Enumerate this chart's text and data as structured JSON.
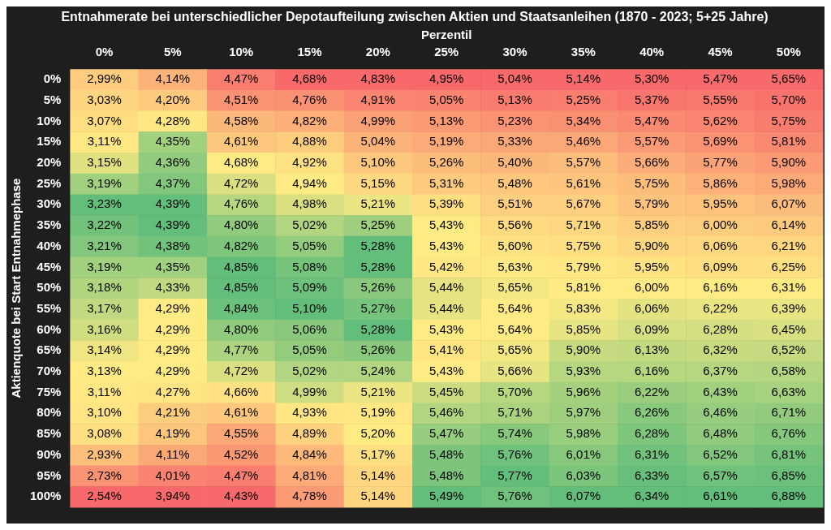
{
  "chart_data": {
    "type": "heatmap",
    "title": "Entnahmerate bei unterschiedlicher Depotaufteilung zwischen Aktien und Staatsanleihen (1870 - 2023; 5+25 Jahre)",
    "xlabel": "Perzentil",
    "ylabel": "Aktienquote bei Start Entnahmephase",
    "categories": [
      "0%",
      "5%",
      "10%",
      "15%",
      "20%",
      "25%",
      "30%",
      "35%",
      "40%",
      "45%",
      "50%"
    ],
    "y_categories": [
      "0%",
      "5%",
      "10%",
      "15%",
      "20%",
      "25%",
      "30%",
      "35%",
      "40%",
      "45%",
      "50%",
      "55%",
      "60%",
      "65%",
      "70%",
      "75%",
      "80%",
      "85%",
      "90%",
      "95%",
      "100%"
    ],
    "cells": [
      [
        2.99,
        4.14,
        4.47,
        4.68,
        4.83,
        4.95,
        5.04,
        5.14,
        5.3,
        5.47,
        5.65
      ],
      [
        3.03,
        4.2,
        4.51,
        4.76,
        4.91,
        5.05,
        5.13,
        5.25,
        5.37,
        5.55,
        5.7
      ],
      [
        3.07,
        4.28,
        4.58,
        4.82,
        4.99,
        5.13,
        5.23,
        5.34,
        5.47,
        5.62,
        5.75
      ],
      [
        3.11,
        4.35,
        4.61,
        4.88,
        5.04,
        5.19,
        5.33,
        5.46,
        5.57,
        5.69,
        5.81
      ],
      [
        3.15,
        4.36,
        4.68,
        4.92,
        5.1,
        5.26,
        5.4,
        5.57,
        5.66,
        5.77,
        5.9
      ],
      [
        3.19,
        4.37,
        4.72,
        4.94,
        5.15,
        5.31,
        5.48,
        5.61,
        5.75,
        5.86,
        5.98
      ],
      [
        3.23,
        4.39,
        4.76,
        4.98,
        5.21,
        5.39,
        5.51,
        5.67,
        5.79,
        5.95,
        6.07
      ],
      [
        3.22,
        4.39,
        4.8,
        5.02,
        5.25,
        5.43,
        5.56,
        5.71,
        5.85,
        6.0,
        6.14
      ],
      [
        3.21,
        4.38,
        4.82,
        5.05,
        5.28,
        5.43,
        5.6,
        5.75,
        5.9,
        6.06,
        6.21
      ],
      [
        3.19,
        4.35,
        4.85,
        5.08,
        5.28,
        5.42,
        5.63,
        5.79,
        5.95,
        6.09,
        6.25
      ],
      [
        3.18,
        4.33,
        4.85,
        5.09,
        5.26,
        5.44,
        5.65,
        5.81,
        6.0,
        6.16,
        6.31
      ],
      [
        3.17,
        4.29,
        4.84,
        5.1,
        5.27,
        5.44,
        5.64,
        5.83,
        6.06,
        6.22,
        6.39
      ],
      [
        3.16,
        4.29,
        4.8,
        5.06,
        5.28,
        5.43,
        5.64,
        5.85,
        6.09,
        6.28,
        6.45
      ],
      [
        3.14,
        4.29,
        4.77,
        5.05,
        5.26,
        5.41,
        5.65,
        5.9,
        6.13,
        6.32,
        6.52
      ],
      [
        3.13,
        4.29,
        4.72,
        5.02,
        5.24,
        5.43,
        5.66,
        5.93,
        6.16,
        6.37,
        6.58
      ],
      [
        3.11,
        4.27,
        4.66,
        4.99,
        5.21,
        5.45,
        5.7,
        5.96,
        6.22,
        6.43,
        6.63
      ],
      [
        3.1,
        4.21,
        4.61,
        4.93,
        5.19,
        5.46,
        5.71,
        5.97,
        6.26,
        6.46,
        6.71
      ],
      [
        3.08,
        4.19,
        4.55,
        4.89,
        5.2,
        5.47,
        5.74,
        5.98,
        6.28,
        6.48,
        6.76
      ],
      [
        2.93,
        4.11,
        4.52,
        4.84,
        5.17,
        5.48,
        5.76,
        6.01,
        6.31,
        6.52,
        6.81
      ],
      [
        2.73,
        4.01,
        4.47,
        4.81,
        5.14,
        5.48,
        5.77,
        6.03,
        6.33,
        6.57,
        6.85
      ],
      [
        2.54,
        3.94,
        4.43,
        4.78,
        5.14,
        5.49,
        5.76,
        6.07,
        6.34,
        6.61,
        6.88
      ]
    ],
    "cell_labels": [
      [
        "2,99%",
        "4,14%",
        "4,47%",
        "4,68%",
        "4,83%",
        "4,95%",
        "5,04%",
        "5,14%",
        "5,30%",
        "5,47%",
        "5,65%"
      ],
      [
        "3,03%",
        "4,20%",
        "4,51%",
        "4,76%",
        "4,91%",
        "5,05%",
        "5,13%",
        "5,25%",
        "5,37%",
        "5,55%",
        "5,70%"
      ],
      [
        "3,07%",
        "4,28%",
        "4,58%",
        "4,82%",
        "4,99%",
        "5,13%",
        "5,23%",
        "5,34%",
        "5,47%",
        "5,62%",
        "5,75%"
      ],
      [
        "3,11%",
        "4,35%",
        "4,61%",
        "4,88%",
        "5,04%",
        "5,19%",
        "5,33%",
        "5,46%",
        "5,57%",
        "5,69%",
        "5,81%"
      ],
      [
        "3,15%",
        "4,36%",
        "4,68%",
        "4,92%",
        "5,10%",
        "5,26%",
        "5,40%",
        "5,57%",
        "5,66%",
        "5,77%",
        "5,90%"
      ],
      [
        "3,19%",
        "4,37%",
        "4,72%",
        "4,94%",
        "5,15%",
        "5,31%",
        "5,48%",
        "5,61%",
        "5,75%",
        "5,86%",
        "5,98%"
      ],
      [
        "3,23%",
        "4,39%",
        "4,76%",
        "4,98%",
        "5,21%",
        "5,39%",
        "5,51%",
        "5,67%",
        "5,79%",
        "5,95%",
        "6,07%"
      ],
      [
        "3,22%",
        "4,39%",
        "4,80%",
        "5,02%",
        "5,25%",
        "5,43%",
        "5,56%",
        "5,71%",
        "5,85%",
        "6,00%",
        "6,14%"
      ],
      [
        "3,21%",
        "4,38%",
        "4,82%",
        "5,05%",
        "5,28%",
        "5,43%",
        "5,60%",
        "5,75%",
        "5,90%",
        "6,06%",
        "6,21%"
      ],
      [
        "3,19%",
        "4,35%",
        "4,85%",
        "5,08%",
        "5,28%",
        "5,42%",
        "5,63%",
        "5,79%",
        "5,95%",
        "6,09%",
        "6,25%"
      ],
      [
        "3,18%",
        "4,33%",
        "4,85%",
        "5,09%",
        "5,26%",
        "5,44%",
        "5,65%",
        "5,81%",
        "6,00%",
        "6,16%",
        "6,31%"
      ],
      [
        "3,17%",
        "4,29%",
        "4,84%",
        "5,10%",
        "5,27%",
        "5,44%",
        "5,64%",
        "5,83%",
        "6,06%",
        "6,22%",
        "6,39%"
      ],
      [
        "3,16%",
        "4,29%",
        "4,80%",
        "5,06%",
        "5,28%",
        "5,43%",
        "5,64%",
        "5,85%",
        "6,09%",
        "6,28%",
        "6,45%"
      ],
      [
        "3,14%",
        "4,29%",
        "4,77%",
        "5,05%",
        "5,26%",
        "5,41%",
        "5,65%",
        "5,90%",
        "6,13%",
        "6,32%",
        "6,52%"
      ],
      [
        "3,13%",
        "4,29%",
        "4,72%",
        "5,02%",
        "5,24%",
        "5,43%",
        "5,66%",
        "5,93%",
        "6,16%",
        "6,37%",
        "6,58%"
      ],
      [
        "3,11%",
        "4,27%",
        "4,66%",
        "4,99%",
        "5,21%",
        "5,45%",
        "5,70%",
        "5,96%",
        "6,22%",
        "6,43%",
        "6,63%"
      ],
      [
        "3,10%",
        "4,21%",
        "4,61%",
        "4,93%",
        "5,19%",
        "5,46%",
        "5,71%",
        "5,97%",
        "6,26%",
        "6,46%",
        "6,71%"
      ],
      [
        "3,08%",
        "4,19%",
        "4,55%",
        "4,89%",
        "5,20%",
        "5,47%",
        "5,74%",
        "5,98%",
        "6,28%",
        "6,48%",
        "6,76%"
      ],
      [
        "2,93%",
        "4,11%",
        "4,52%",
        "4,84%",
        "5,17%",
        "5,48%",
        "5,76%",
        "6,01%",
        "6,31%",
        "6,52%",
        "6,81%"
      ],
      [
        "2,73%",
        "4,01%",
        "4,47%",
        "4,81%",
        "5,14%",
        "5,48%",
        "5,77%",
        "6,03%",
        "6,33%",
        "6,57%",
        "6,85%"
      ],
      [
        "2,54%",
        "3,94%",
        "4,43%",
        "4,78%",
        "5,14%",
        "5,49%",
        "5,76%",
        "6,07%",
        "6,34%",
        "6,61%",
        "6,88%"
      ]
    ]
  }
}
